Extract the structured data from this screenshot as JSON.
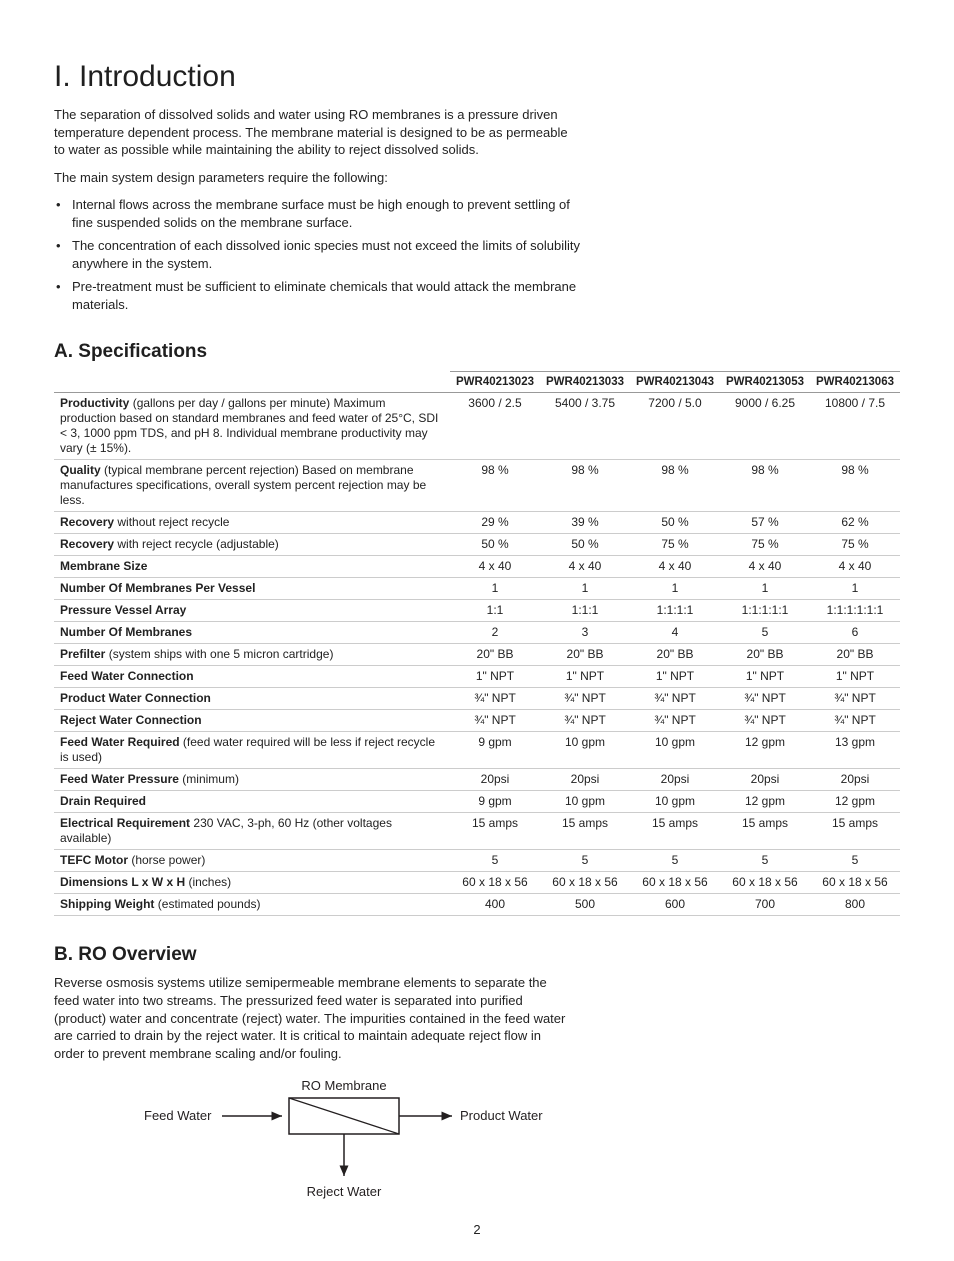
{
  "pageNumber": "2",
  "section": {
    "title": "I. Introduction",
    "para1": "The separation of dissolved solids and water using RO membranes is a pressure driven temperature dependent process. The membrane material is designed to be as permeable to water as possible while maintaining the ability to reject dissolved solids.",
    "para2": "The main system design parameters require the following:",
    "bullets": [
      "Internal flows across the membrane surface must be high enough to prevent settling of fine suspended solids on the membrane surface.",
      "The concentration of each dissolved ionic species must not exceed the limits of solubility anywhere in the system.",
      "Pre-treatment must be sufficient to eliminate chemicals that would attack the membrane materials."
    ]
  },
  "specs": {
    "title": "A. Specifications",
    "headers": [
      "PWR40213023",
      "PWR40213033",
      "PWR40213043",
      "PWR40213053",
      "PWR40213063"
    ],
    "rows": [
      {
        "labelBold": "Productivity",
        "labelRest": " (gallons per day / gallons per minute) Maximum production based on standard membranes and feed water of 25°C, SDI < 3, 1000 ppm TDS, and pH 8. Individual membrane productivity may vary (± 15%).",
        "vals": [
          "3600 / 2.5",
          "5400 / 3.75",
          "7200 / 5.0",
          "9000 / 6.25",
          "10800 / 7.5"
        ]
      },
      {
        "labelBold": "Quality",
        "labelRest": " (typical membrane percent rejection) Based on membrane manufactures specifications, overall system percent rejection may be less.",
        "vals": [
          "98 %",
          "98 %",
          "98 %",
          "98 %",
          "98 %"
        ]
      },
      {
        "labelBold": "Recovery",
        "labelRest": " without reject recycle",
        "vals": [
          "29 %",
          "39 %",
          "50 %",
          "57 %",
          "62 %"
        ]
      },
      {
        "labelBold": "Recovery",
        "labelRest": " with reject recycle (adjustable)",
        "vals": [
          "50 %",
          "50 %",
          "75 %",
          "75 %",
          "75 %"
        ]
      },
      {
        "labelBold": "Membrane Size",
        "labelRest": "",
        "vals": [
          "4 x 40",
          "4 x 40",
          "4 x 40",
          "4 x 40",
          "4 x 40"
        ]
      },
      {
        "labelBold": "Number Of Membranes Per Vessel",
        "labelRest": "",
        "vals": [
          "1",
          "1",
          "1",
          "1",
          "1"
        ]
      },
      {
        "labelBold": "Pressure Vessel Array",
        "labelRest": "",
        "vals": [
          "1:1",
          "1:1:1",
          "1:1:1:1",
          "1:1:1:1:1",
          "1:1:1:1:1:1"
        ]
      },
      {
        "labelBold": "Number Of Membranes",
        "labelRest": "",
        "vals": [
          "2",
          "3",
          "4",
          "5",
          "6"
        ]
      },
      {
        "labelBold": "Prefilter",
        "labelRest": " (system ships with one 5 micron cartridge)",
        "vals": [
          "20\" BB",
          "20\" BB",
          "20\" BB",
          "20\" BB",
          "20\" BB"
        ]
      },
      {
        "labelBold": "Feed Water Connection",
        "labelRest": "",
        "vals": [
          "1\" NPT",
          "1\" NPT",
          "1\" NPT",
          "1\" NPT",
          "1\" NPT"
        ]
      },
      {
        "labelBold": "Product Water Connection",
        "labelRest": "",
        "vals": [
          "¾\" NPT",
          "¾\" NPT",
          "¾\" NPT",
          "¾\" NPT",
          "¾\" NPT"
        ]
      },
      {
        "labelBold": "Reject Water Connection",
        "labelRest": "",
        "vals": [
          "¾\" NPT",
          "¾\" NPT",
          "¾\" NPT",
          "¾\" NPT",
          "¾\" NPT"
        ]
      },
      {
        "labelBold": "Feed Water Required",
        "labelRest": " (feed water required will be less if reject recycle is used)",
        "vals": [
          "9 gpm",
          "10 gpm",
          "10 gpm",
          "12 gpm",
          "13 gpm"
        ]
      },
      {
        "labelBold": "Feed Water Pressure",
        "labelRest": " (minimum)",
        "vals": [
          "20psi",
          "20psi",
          "20psi",
          "20psi",
          "20psi"
        ]
      },
      {
        "labelBold": "Drain Required",
        "labelRest": "",
        "vals": [
          "9 gpm",
          "10 gpm",
          "10 gpm",
          "12 gpm",
          "12 gpm"
        ]
      },
      {
        "labelBold": "Electrical Requirement",
        "labelRest": " 230 VAC, 3-ph, 60 Hz (other voltages available)",
        "vals": [
          "15 amps",
          "15 amps",
          "15 amps",
          "15 amps",
          "15 amps"
        ]
      },
      {
        "labelBold": "TEFC Motor",
        "labelRest": " (horse power)",
        "vals": [
          "5",
          "5",
          "5",
          "5",
          "5"
        ]
      },
      {
        "labelBold": "Dimensions L x W x H",
        "labelRest": " (inches)",
        "vals": [
          "60 x 18 x 56",
          "60 x 18 x 56",
          "60 x 18 x 56",
          "60 x 18 x 56",
          "60 x 18 x 56"
        ]
      },
      {
        "labelBold": "Shipping Weight",
        "labelRest": " (estimated pounds)",
        "vals": [
          "400",
          "500",
          "600",
          "700",
          "800"
        ]
      }
    ]
  },
  "overview": {
    "title": "B. RO Overview",
    "para": "Reverse osmosis systems utilize semipermeable membrane elements to separate the feed water into two streams. The pressurized feed water is separated into purified (product) water and concentrate (reject) water. The impurities contained in the feed water are carried to drain by the reject water. It is critical to maintain adequate reject flow in order to prevent membrane scaling and/or fouling."
  },
  "diagram": {
    "topLabel": "RO Membrane",
    "leftLabel": "Feed Water",
    "rightLabel": "Product Water",
    "bottomLabel": "Reject Water",
    "stroke": "#231f20",
    "boxFill": "#ffffff",
    "font": "13px Arial"
  }
}
